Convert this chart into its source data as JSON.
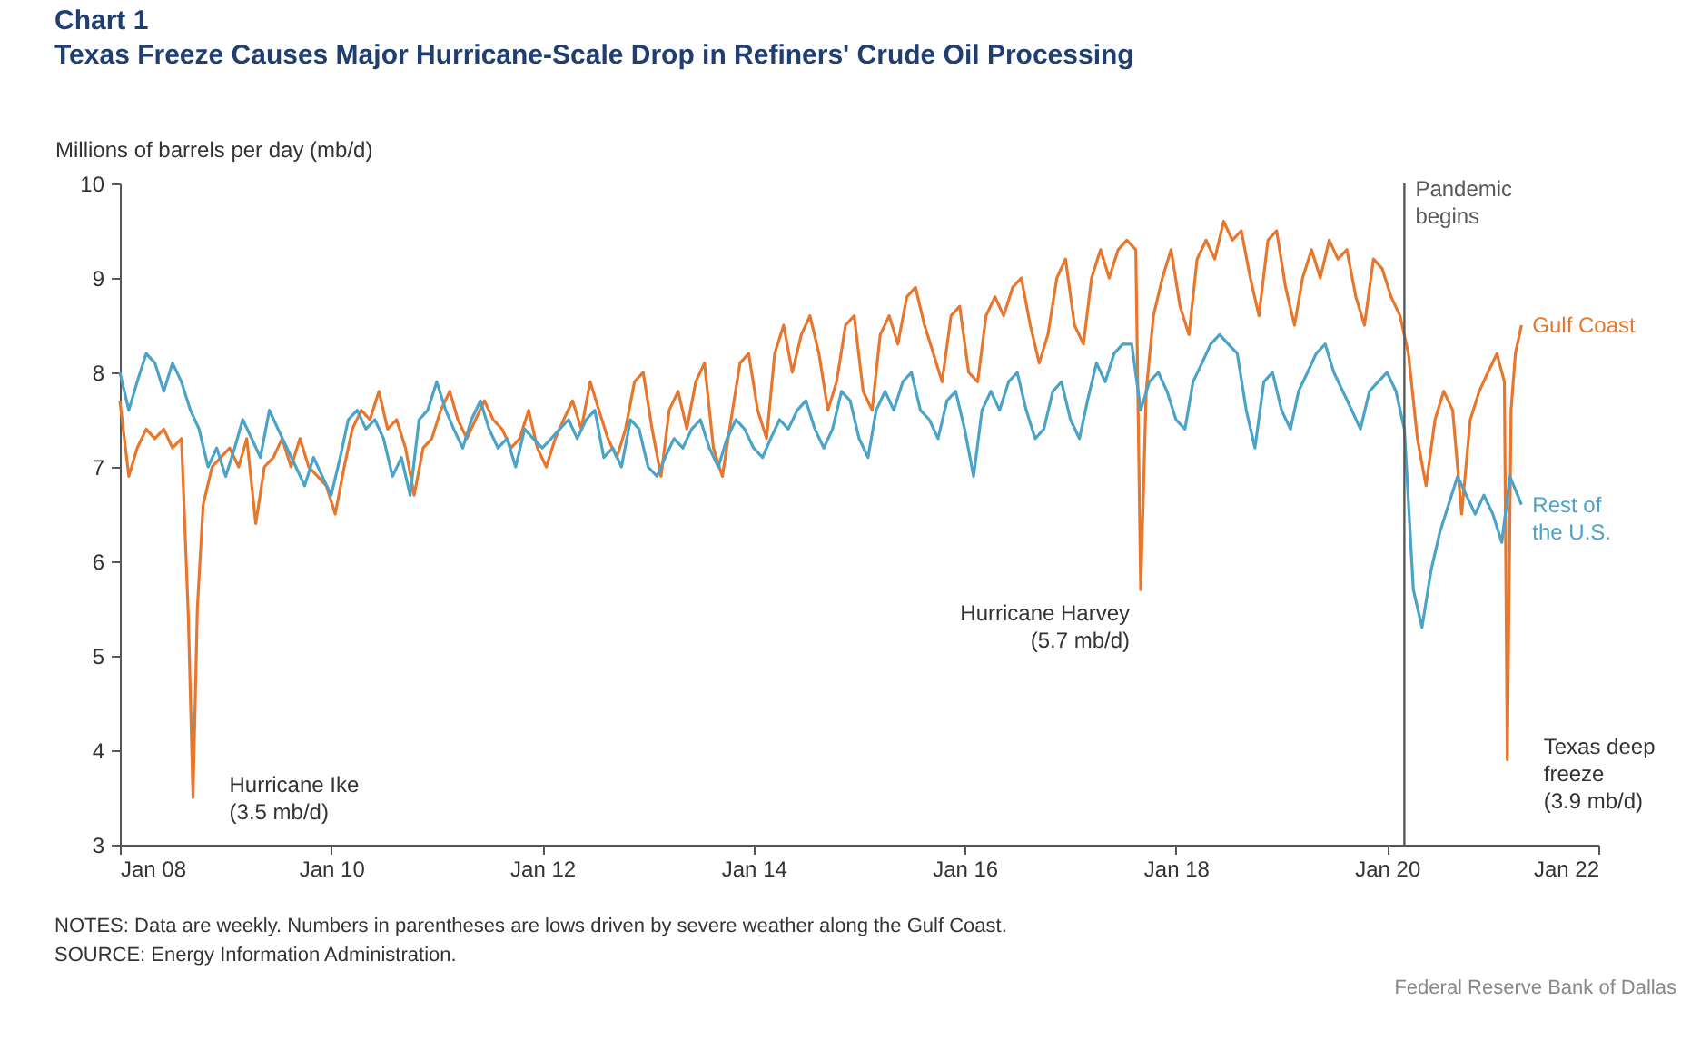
{
  "chart_data": {
    "type": "line",
    "title": "Chart 1",
    "subtitle": "Texas Freeze Causes Major Hurricane-Scale Drop in Refiners' Crude Oil Processing",
    "ylabel": "Millions of barrels per day (mb/d)",
    "xlim": [
      "2008-01-01",
      "2022-01-01"
    ],
    "xticks": [
      {
        "value": "2008-01-01",
        "label": "Jan 08"
      },
      {
        "value": "2010-01-01",
        "label": "Jan 10"
      },
      {
        "value": "2012-01-01",
        "label": "Jan 12"
      },
      {
        "value": "2014-01-01",
        "label": "Jan 14"
      },
      {
        "value": "2016-01-01",
        "label": "Jan 16"
      },
      {
        "value": "2018-01-01",
        "label": "Jan 18"
      },
      {
        "value": "2020-01-01",
        "label": "Jan 20"
      },
      {
        "value": "2022-01-01",
        "label": "Jan 22"
      }
    ],
    "ylim": [
      3,
      10
    ],
    "yticks": [
      3,
      4,
      5,
      6,
      7,
      8,
      9,
      10
    ],
    "series": [
      {
        "name": "Gulf Coast",
        "color": "#e8772e",
        "x": [
          "2008-01-01",
          "2008-02-01",
          "2008-03-01",
          "2008-04-01",
          "2008-05-01",
          "2008-06-01",
          "2008-07-01",
          "2008-08-01",
          "2008-08-25",
          "2008-09-10",
          "2008-09-25",
          "2008-10-15",
          "2008-11-15",
          "2008-12-15",
          "2009-01-15",
          "2009-02-15",
          "2009-03-15",
          "2009-04-15",
          "2009-05-15",
          "2009-06-15",
          "2009-07-15",
          "2009-08-15",
          "2009-09-15",
          "2009-10-15",
          "2009-11-15",
          "2009-12-15",
          "2010-01-15",
          "2010-02-15",
          "2010-03-15",
          "2010-04-15",
          "2010-05-15",
          "2010-06-15",
          "2010-07-15",
          "2010-08-15",
          "2010-09-15",
          "2010-10-15",
          "2010-11-15",
          "2010-12-15",
          "2011-01-15",
          "2011-02-15",
          "2011-03-15",
          "2011-04-15",
          "2011-05-15",
          "2011-06-15",
          "2011-07-15",
          "2011-08-15",
          "2011-09-15",
          "2011-10-15",
          "2011-11-15",
          "2011-12-15",
          "2012-01-15",
          "2012-02-15",
          "2012-03-15",
          "2012-04-15",
          "2012-05-15",
          "2012-06-15",
          "2012-07-15",
          "2012-08-15",
          "2012-09-15",
          "2012-10-15",
          "2012-11-15",
          "2012-12-15",
          "2013-01-15",
          "2013-02-15",
          "2013-03-15",
          "2013-04-15",
          "2013-05-15",
          "2013-06-15",
          "2013-07-15",
          "2013-08-15",
          "2013-09-15",
          "2013-10-15",
          "2013-11-15",
          "2013-12-15",
          "2014-01-15",
          "2014-02-15",
          "2014-03-15",
          "2014-04-15",
          "2014-05-15",
          "2014-06-15",
          "2014-07-15",
          "2014-08-15",
          "2014-09-15",
          "2014-10-15",
          "2014-11-15",
          "2014-12-15",
          "2015-01-15",
          "2015-02-15",
          "2015-03-15",
          "2015-04-15",
          "2015-05-15",
          "2015-06-15",
          "2015-07-15",
          "2015-08-15",
          "2015-09-15",
          "2015-10-15",
          "2015-11-15",
          "2015-12-15",
          "2016-01-15",
          "2016-02-15",
          "2016-03-15",
          "2016-04-15",
          "2016-05-15",
          "2016-06-15",
          "2016-07-15",
          "2016-08-15",
          "2016-09-15",
          "2016-10-15",
          "2016-11-15",
          "2016-12-15",
          "2017-01-15",
          "2017-02-15",
          "2017-03-15",
          "2017-04-15",
          "2017-05-15",
          "2017-06-15",
          "2017-07-15",
          "2017-08-15",
          "2017-09-01",
          "2017-09-20",
          "2017-10-15",
          "2017-11-15",
          "2017-12-15",
          "2018-01-15",
          "2018-02-15",
          "2018-03-15",
          "2018-04-15",
          "2018-05-15",
          "2018-06-15",
          "2018-07-15",
          "2018-08-15",
          "2018-09-15",
          "2018-10-15",
          "2018-11-15",
          "2018-12-15",
          "2019-01-15",
          "2019-02-15",
          "2019-03-15",
          "2019-04-15",
          "2019-05-15",
          "2019-06-15",
          "2019-07-15",
          "2019-08-15",
          "2019-09-15",
          "2019-10-15",
          "2019-11-15",
          "2019-12-15",
          "2020-01-15",
          "2020-02-15",
          "2020-03-15",
          "2020-04-15",
          "2020-05-15",
          "2020-06-15",
          "2020-07-15",
          "2020-08-15",
          "2020-09-15",
          "2020-10-15",
          "2020-11-15",
          "2020-12-15",
          "2021-01-15",
          "2021-02-10",
          "2021-02-20",
          "2021-03-05",
          "2021-03-20",
          "2021-04-10"
        ],
        "values": [
          7.7,
          6.9,
          7.2,
          7.4,
          7.3,
          7.4,
          7.2,
          7.3,
          5.4,
          3.5,
          5.5,
          6.6,
          7.0,
          7.1,
          7.2,
          7.0,
          7.3,
          6.4,
          7.0,
          7.1,
          7.3,
          7.0,
          7.3,
          7.0,
          6.9,
          6.8,
          6.5,
          7.0,
          7.4,
          7.6,
          7.5,
          7.8,
          7.4,
          7.5,
          7.2,
          6.7,
          7.2,
          7.3,
          7.6,
          7.8,
          7.5,
          7.3,
          7.5,
          7.7,
          7.5,
          7.4,
          7.2,
          7.3,
          7.6,
          7.2,
          7.0,
          7.3,
          7.5,
          7.7,
          7.4,
          7.9,
          7.6,
          7.3,
          7.1,
          7.4,
          7.9,
          8.0,
          7.4,
          6.9,
          7.6,
          7.8,
          7.4,
          7.9,
          8.1,
          7.2,
          6.9,
          7.5,
          8.1,
          8.2,
          7.6,
          7.3,
          8.2,
          8.5,
          8.0,
          8.4,
          8.6,
          8.2,
          7.6,
          7.9,
          8.5,
          8.6,
          7.8,
          7.6,
          8.4,
          8.6,
          8.3,
          8.8,
          8.9,
          8.5,
          8.2,
          7.9,
          8.6,
          8.7,
          8.0,
          7.9,
          8.6,
          8.8,
          8.6,
          8.9,
          9.0,
          8.5,
          8.1,
          8.4,
          9.0,
          9.2,
          8.5,
          8.3,
          9.0,
          9.3,
          9.0,
          9.3,
          9.4,
          9.3,
          5.7,
          7.8,
          8.6,
          9.0,
          9.3,
          8.7,
          8.4,
          9.2,
          9.4,
          9.2,
          9.6,
          9.4,
          9.5,
          9.0,
          8.6,
          9.4,
          9.5,
          8.9,
          8.5,
          9.0,
          9.3,
          9.0,
          9.4,
          9.2,
          9.3,
          8.8,
          8.5,
          9.2,
          9.1,
          8.8,
          8.6,
          8.2,
          7.3,
          6.8,
          7.5,
          7.8,
          7.6,
          6.5,
          7.5,
          7.8,
          8.0,
          8.2,
          7.9,
          3.9,
          7.6,
          8.2,
          8.5
        ]
      },
      {
        "name": "Rest of the U.S.",
        "color": "#4ba3c7",
        "x": [
          "2008-01-01",
          "2008-02-01",
          "2008-03-01",
          "2008-04-01",
          "2008-05-01",
          "2008-06-01",
          "2008-07-01",
          "2008-08-01",
          "2008-09-01",
          "2008-10-01",
          "2008-11-01",
          "2008-12-01",
          "2009-01-01",
          "2009-02-01",
          "2009-03-01",
          "2009-04-01",
          "2009-05-01",
          "2009-06-01",
          "2009-07-01",
          "2009-08-01",
          "2009-09-01",
          "2009-10-01",
          "2009-11-01",
          "2009-12-01",
          "2010-01-01",
          "2010-02-01",
          "2010-03-01",
          "2010-04-01",
          "2010-05-01",
          "2010-06-01",
          "2010-07-01",
          "2010-08-01",
          "2010-09-01",
          "2010-10-01",
          "2010-11-01",
          "2010-12-01",
          "2011-01-01",
          "2011-02-01",
          "2011-03-01",
          "2011-04-01",
          "2011-05-01",
          "2011-06-01",
          "2011-07-01",
          "2011-08-01",
          "2011-09-01",
          "2011-10-01",
          "2011-11-01",
          "2011-12-01",
          "2012-01-01",
          "2012-02-01",
          "2012-03-01",
          "2012-04-01",
          "2012-05-01",
          "2012-06-01",
          "2012-07-01",
          "2012-08-01",
          "2012-09-01",
          "2012-10-01",
          "2012-11-01",
          "2012-12-01",
          "2013-01-01",
          "2013-02-01",
          "2013-03-01",
          "2013-04-01",
          "2013-05-01",
          "2013-06-01",
          "2013-07-01",
          "2013-08-01",
          "2013-09-01",
          "2013-10-01",
          "2013-11-01",
          "2013-12-01",
          "2014-01-01",
          "2014-02-01",
          "2014-03-01",
          "2014-04-01",
          "2014-05-01",
          "2014-06-01",
          "2014-07-01",
          "2014-08-01",
          "2014-09-01",
          "2014-10-01",
          "2014-11-01",
          "2014-12-01",
          "2015-01-01",
          "2015-02-01",
          "2015-03-01",
          "2015-04-01",
          "2015-05-01",
          "2015-06-01",
          "2015-07-01",
          "2015-08-01",
          "2015-09-01",
          "2015-10-01",
          "2015-11-01",
          "2015-12-01",
          "2016-01-01",
          "2016-02-01",
          "2016-03-01",
          "2016-04-01",
          "2016-05-01",
          "2016-06-01",
          "2016-07-01",
          "2016-08-01",
          "2016-09-01",
          "2016-10-01",
          "2016-11-01",
          "2016-12-01",
          "2017-01-01",
          "2017-02-01",
          "2017-03-01",
          "2017-04-01",
          "2017-05-01",
          "2017-06-01",
          "2017-07-01",
          "2017-08-01",
          "2017-09-01",
          "2017-10-01",
          "2017-11-01",
          "2017-12-01",
          "2018-01-01",
          "2018-02-01",
          "2018-03-01",
          "2018-04-01",
          "2018-05-01",
          "2018-06-01",
          "2018-07-01",
          "2018-08-01",
          "2018-09-01",
          "2018-10-01",
          "2018-11-01",
          "2018-12-01",
          "2019-01-01",
          "2019-02-01",
          "2019-03-01",
          "2019-04-01",
          "2019-05-01",
          "2019-06-01",
          "2019-07-01",
          "2019-08-01",
          "2019-09-01",
          "2019-10-01",
          "2019-11-01",
          "2019-12-01",
          "2020-01-01",
          "2020-02-01",
          "2020-03-01",
          "2020-04-01",
          "2020-05-01",
          "2020-06-01",
          "2020-07-01",
          "2020-08-01",
          "2020-09-01",
          "2020-10-01",
          "2020-11-01",
          "2020-12-01",
          "2021-01-01",
          "2021-02-01",
          "2021-03-01",
          "2021-04-10"
        ],
        "values": [
          8.0,
          7.6,
          7.9,
          8.2,
          8.1,
          7.8,
          8.1,
          7.9,
          7.6,
          7.4,
          7.0,
          7.2,
          6.9,
          7.2,
          7.5,
          7.3,
          7.1,
          7.6,
          7.4,
          7.2,
          7.0,
          6.8,
          7.1,
          6.9,
          6.7,
          7.1,
          7.5,
          7.6,
          7.4,
          7.5,
          7.3,
          6.9,
          7.1,
          6.7,
          7.5,
          7.6,
          7.9,
          7.6,
          7.4,
          7.2,
          7.5,
          7.7,
          7.4,
          7.2,
          7.3,
          7.0,
          7.4,
          7.3,
          7.2,
          7.3,
          7.4,
          7.5,
          7.3,
          7.5,
          7.6,
          7.1,
          7.2,
          7.0,
          7.5,
          7.4,
          7.0,
          6.9,
          7.1,
          7.3,
          7.2,
          7.4,
          7.5,
          7.2,
          7.0,
          7.3,
          7.5,
          7.4,
          7.2,
          7.1,
          7.3,
          7.5,
          7.4,
          7.6,
          7.7,
          7.4,
          7.2,
          7.4,
          7.8,
          7.7,
          7.3,
          7.1,
          7.6,
          7.8,
          7.6,
          7.9,
          8.0,
          7.6,
          7.5,
          7.3,
          7.7,
          7.8,
          7.4,
          6.9,
          7.6,
          7.8,
          7.6,
          7.9,
          8.0,
          7.6,
          7.3,
          7.4,
          7.8,
          7.9,
          7.5,
          7.3,
          7.7,
          8.1,
          7.9,
          8.2,
          8.3,
          8.3,
          7.6,
          7.9,
          8.0,
          7.8,
          7.5,
          7.4,
          7.9,
          8.1,
          8.3,
          8.4,
          8.3,
          8.2,
          7.6,
          7.2,
          7.9,
          8.0,
          7.6,
          7.4,
          7.8,
          8.0,
          8.2,
          8.3,
          8.0,
          7.8,
          7.6,
          7.4,
          7.8,
          7.9,
          8.0,
          7.8,
          7.4,
          5.7,
          5.3,
          5.9,
          6.3,
          6.6,
          6.9,
          6.7,
          6.5,
          6.7,
          6.5,
          6.2,
          6.9,
          6.6
        ]
      }
    ],
    "ref_lines": [
      {
        "axis": "x",
        "value": "2020-03-01",
        "label": "Pandemic begins",
        "color": "#595959"
      }
    ],
    "annotations": [
      {
        "text": "Hurricane Ike (3.5 mb/d)",
        "x": "2008-09-10",
        "y": 3.5
      },
      {
        "text": "Hurricane Harvey (5.7 mb/d)",
        "x": "2017-09-01",
        "y": 5.7
      },
      {
        "text": "Texas deep freeze (3.9 mb/d)",
        "x": "2021-02-20",
        "y": 3.9
      },
      "NOTES: Data are weekly. Numbers in parentheses are lows driven by severe weather along the Gulf Coast.",
      "SOURCE: Energy Information Administration.",
      "Federal Reserve Bank of Dallas"
    ]
  }
}
